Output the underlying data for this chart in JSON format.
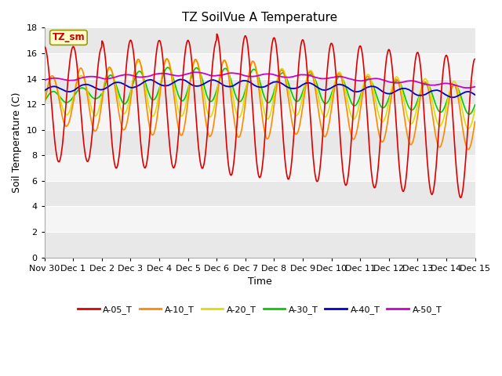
{
  "title": "TZ SoilVue A Temperature",
  "xlabel": "Time",
  "ylabel": "Soil Temperature (C)",
  "ylim": [
    0,
    18
  ],
  "yticks": [
    0,
    2,
    4,
    6,
    8,
    10,
    12,
    14,
    16,
    18
  ],
  "x_labels": [
    "Nov 30",
    "Dec 1",
    "Dec 2",
    "Dec 3",
    "Dec 4",
    "Dec 5",
    "Dec 6",
    "Dec 7",
    "Dec 8",
    "Dec 9",
    "Dec 10",
    "Dec 11",
    "Dec 12",
    "Dec 13",
    "Dec 14",
    "Dec 15"
  ],
  "series_colors": {
    "A-05_T": "#dd0000",
    "A-10_T": "#ff8800",
    "A-20_T": "#dddd00",
    "A-30_T": "#00cc00",
    "A-40_T": "#0000cc",
    "A-50_T": "#cc00cc"
  },
  "legend_label": "TZ_sm",
  "legend_text_color": "#cc0000",
  "legend_bg": "#ffffcc",
  "legend_border": "#999900",
  "fig_bg": "#ffffff",
  "plot_bg_light": "#e8e8e8",
  "plot_bg_dark": "#d0d0d0",
  "grid_color": "#ffffff",
  "title_fontsize": 11,
  "axis_fontsize": 9,
  "tick_fontsize": 8
}
